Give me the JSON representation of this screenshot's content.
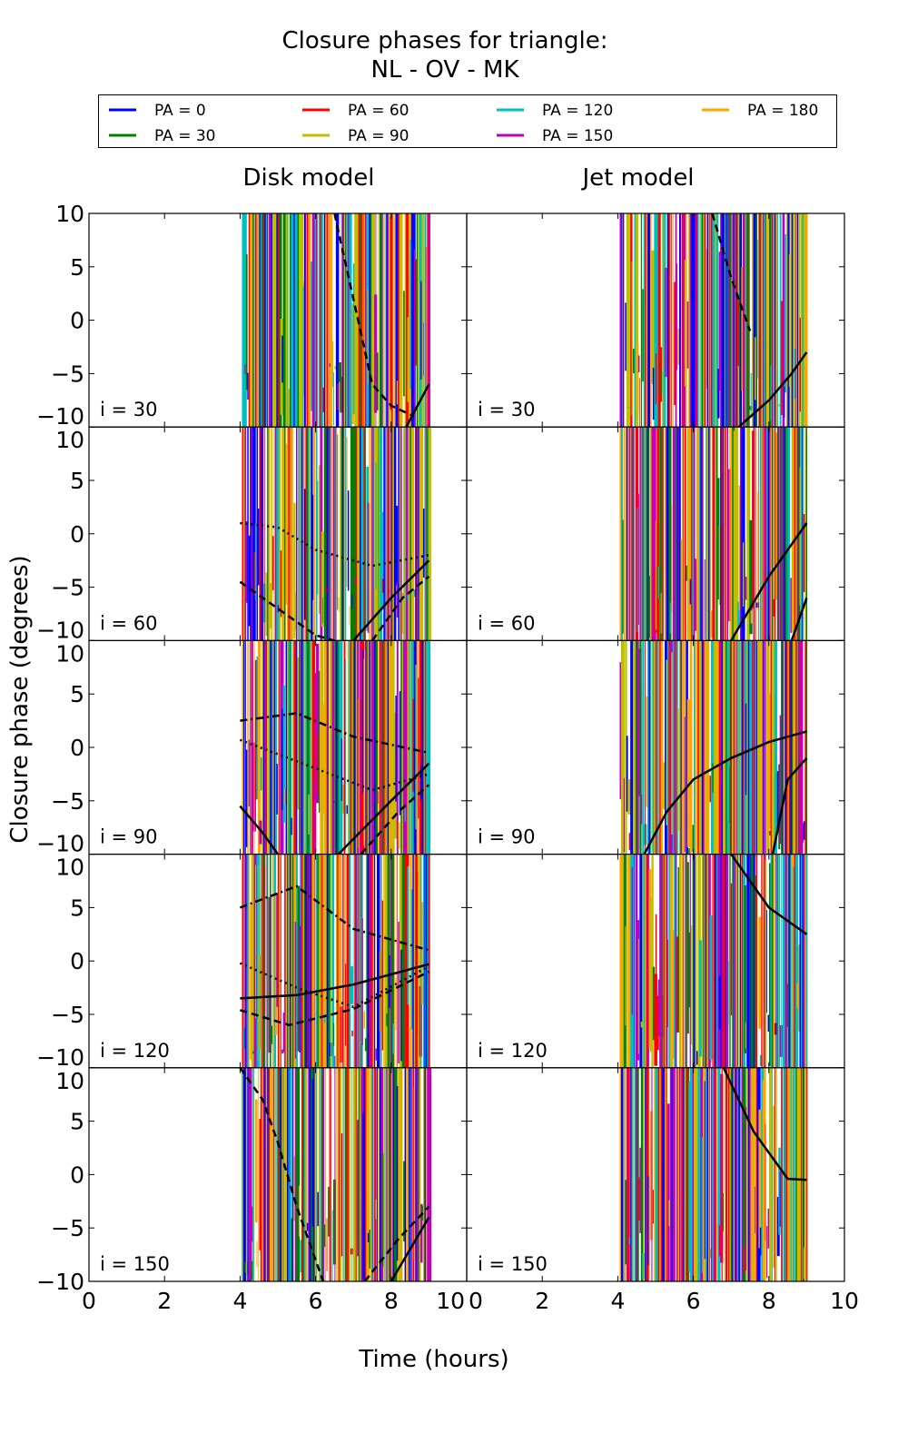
{
  "chart_data": {
    "type": "line",
    "title_line1": "Closure phases for triangle:",
    "title_line2": "NL - OV - MK",
    "xlabel": "Time (hours)",
    "ylabel": "Closure phase (degrees)",
    "xlim": [
      0,
      10
    ],
    "ylim": [
      -10,
      10
    ],
    "xticks": [
      "0",
      "2",
      "4",
      "6",
      "8",
      "10"
    ],
    "yticks": [
      "10",
      "5",
      "0",
      "−5",
      "−10"
    ],
    "grid": false,
    "legend_placement": "top",
    "legend": [
      {
        "label": "PA = 0",
        "color": "#0000ff"
      },
      {
        "label": "PA = 30",
        "color": "#008000"
      },
      {
        "label": "PA = 60",
        "color": "#ff0000"
      },
      {
        "label": "PA = 90",
        "color": "#bfbf00"
      },
      {
        "label": "PA = 120",
        "color": "#00bfbf"
      },
      {
        "label": "PA = 150",
        "color": "#bf00bf"
      },
      {
        "label": "PA = 180",
        "color": "#ffa500"
      }
    ],
    "columns": [
      {
        "title": "Disk model",
        "time_range": [
          4.05,
          9.0
        ]
      },
      {
        "title": "Jet model",
        "time_range": [
          4.05,
          9.0
        ]
      }
    ],
    "rows": [
      {
        "label": "i = 30",
        "curves": [
          [
            {
              "style": "solid",
              "pts": [
                [
                  8.4,
                  -10
                ],
                [
                  8.7,
                  -8
                ],
                [
                  9,
                  -6
                ]
              ]
            },
            {
              "style": "dashed",
              "pts": [
                [
                  6.5,
                  10
                ],
                [
                  7,
                  2
                ],
                [
                  7.5,
                  -6
                ],
                [
                  8,
                  -8
                ],
                [
                  8.6,
                  -9
                ]
              ]
            }
          ],
          [
            {
              "style": "solid",
              "pts": [
                [
                  7.2,
                  -10
                ],
                [
                  8,
                  -7.5
                ],
                [
                  8.6,
                  -5
                ],
                [
                  9,
                  -3
                ]
              ]
            },
            {
              "style": "dashed",
              "pts": [
                [
                  6.5,
                  10
                ],
                [
                  7,
                  4
                ],
                [
                  7.5,
                  -1
                ]
              ]
            }
          ]
        ]
      },
      {
        "label": "i = 60",
        "curves": [
          [
            {
              "style": "solid",
              "pts": [
                [
                  7,
                  -10
                ],
                [
                  8,
                  -6
                ],
                [
                  9,
                  -2.5
                ]
              ]
            },
            {
              "style": "dashed",
              "pts": [
                [
                  4,
                  -4.5
                ],
                [
                  5,
                  -7
                ],
                [
                  6,
                  -9.5
                ],
                [
                  6.5,
                  -10
                ]
              ]
            },
            {
              "style": "dotted",
              "pts": [
                [
                  4,
                  1
                ],
                [
                  5,
                  0.6
                ],
                [
                  6,
                  -1.5
                ],
                [
                  7.5,
                  -3
                ],
                [
                  9,
                  -2
                ]
              ]
            },
            {
              "style": "dashed",
              "pts": [
                [
                  7.5,
                  -10
                ],
                [
                  8.3,
                  -6
                ],
                [
                  9,
                  -4
                ]
              ]
            }
          ],
          [
            {
              "style": "solid",
              "pts": [
                [
                  7,
                  -10
                ],
                [
                  8,
                  -4
                ],
                [
                  9,
                  1
                ]
              ]
            },
            {
              "style": "solid",
              "pts": [
                [
                  8.6,
                  -10
                ],
                [
                  9,
                  -6
                ]
              ]
            }
          ]
        ]
      },
      {
        "label": "i = 90",
        "curves": [
          [
            {
              "style": "solid",
              "pts": [
                [
                  6.6,
                  -10
                ],
                [
                  8,
                  -5
                ],
                [
                  9,
                  -1.5
                ]
              ]
            },
            {
              "style": "solid",
              "pts": [
                [
                  4,
                  -5.5
                ],
                [
                  4.6,
                  -8
                ],
                [
                  5,
                  -10
                ]
              ]
            },
            {
              "style": "dotted",
              "pts": [
                [
                  4,
                  0.7
                ],
                [
                  5.5,
                  -1.3
                ],
                [
                  7.5,
                  -4
                ],
                [
                  9,
                  -2.5
                ]
              ]
            },
            {
              "style": "dashdot",
              "pts": [
                [
                  4,
                  2.5
                ],
                [
                  5.5,
                  3.2
                ],
                [
                  7,
                  1
                ],
                [
                  9,
                  -0.5
                ]
              ]
            },
            {
              "style": "dashed",
              "pts": [
                [
                  7.2,
                  -10
                ],
                [
                  8.2,
                  -6
                ],
                [
                  9,
                  -3.5
                ]
              ]
            }
          ],
          [
            {
              "style": "solid",
              "pts": [
                [
                  4.7,
                  -10
                ],
                [
                  5.3,
                  -6
                ],
                [
                  6,
                  -3
                ],
                [
                  7,
                  -1
                ],
                [
                  8,
                  0.5
                ],
                [
                  9,
                  1.5
                ]
              ]
            },
            {
              "style": "solid",
              "pts": [
                [
                  8.1,
                  -10
                ],
                [
                  8.5,
                  -3
                ],
                [
                  9,
                  -1
                ]
              ]
            }
          ]
        ]
      },
      {
        "label": "i = 120",
        "curves": [
          [
            {
              "style": "solid",
              "pts": [
                [
                  4,
                  -3.5
                ],
                [
                  5.5,
                  -3.2
                ],
                [
                  7,
                  -2.2
                ],
                [
                  9,
                  -0.3
                ]
              ]
            },
            {
              "style": "dashed",
              "pts": [
                [
                  4,
                  -4.6
                ],
                [
                  5.3,
                  -6
                ],
                [
                  7,
                  -4.5
                ],
                [
                  9,
                  -1
                ]
              ]
            },
            {
              "style": "dotted",
              "pts": [
                [
                  4,
                  -0.2
                ],
                [
                  5.5,
                  -2.5
                ],
                [
                  7,
                  -4.3
                ],
                [
                  9,
                  -0.5
                ]
              ]
            },
            {
              "style": "dashdot",
              "pts": [
                [
                  4,
                  5
                ],
                [
                  5.5,
                  7
                ],
                [
                  7,
                  3
                ],
                [
                  9,
                  1
                ]
              ]
            }
          ],
          [
            {
              "style": "solid",
              "pts": [
                [
                  7,
                  10
                ],
                [
                  8,
                  5
                ],
                [
                  9,
                  2.5
                ]
              ]
            }
          ]
        ]
      },
      {
        "label": "i = 150",
        "curves": [
          [
            {
              "style": "solid",
              "pts": [
                [
                  8,
                  -10
                ],
                [
                  8.5,
                  -7
                ],
                [
                  9,
                  -4
                ]
              ]
            },
            {
              "style": "dashed",
              "pts": [
                [
                  4,
                  10
                ],
                [
                  4.6,
                  7
                ],
                [
                  5,
                  3
                ],
                [
                  5.5,
                  -3
                ],
                [
                  6.2,
                  -10
                ]
              ]
            },
            {
              "style": "dashed",
              "pts": [
                [
                  7.3,
                  -10
                ],
                [
                  8.2,
                  -6
                ],
                [
                  9,
                  -3
                ]
              ]
            }
          ],
          [
            {
              "style": "solid",
              "pts": [
                [
                  6.8,
                  10
                ],
                [
                  7.6,
                  4
                ],
                [
                  8.5,
                  -0.4
                ],
                [
                  9,
                  -0.5
                ]
              ]
            }
          ]
        ]
      }
    ]
  }
}
